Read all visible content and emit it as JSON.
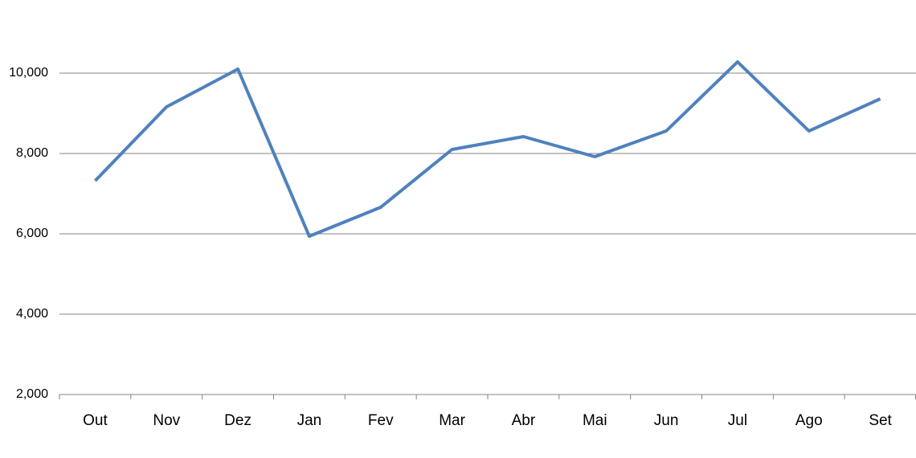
{
  "chart_data": {
    "type": "line",
    "categories": [
      "Out",
      "Nov",
      "Dez",
      "Jan",
      "Fev",
      "Mar",
      "Abr",
      "Mai",
      "Jun",
      "Jul",
      "Ago",
      "Set"
    ],
    "series": [
      {
        "color": "#4f81bd",
        "values": [
          7320,
          9160,
          10100,
          5940,
          6660,
          8100,
          8420,
          7920,
          8560,
          10280,
          8560,
          9360
        ]
      }
    ],
    "ylim": [
      2000,
      11000
    ],
    "yticks": [
      {
        "value": 2000,
        "label": "2,000"
      },
      {
        "value": 4000,
        "label": "4,000"
      },
      {
        "value": 6000,
        "label": "6,000"
      },
      {
        "value": 8000,
        "label": "8,000"
      },
      {
        "value": 10000,
        "label": "10,000"
      }
    ],
    "grid": true
  }
}
